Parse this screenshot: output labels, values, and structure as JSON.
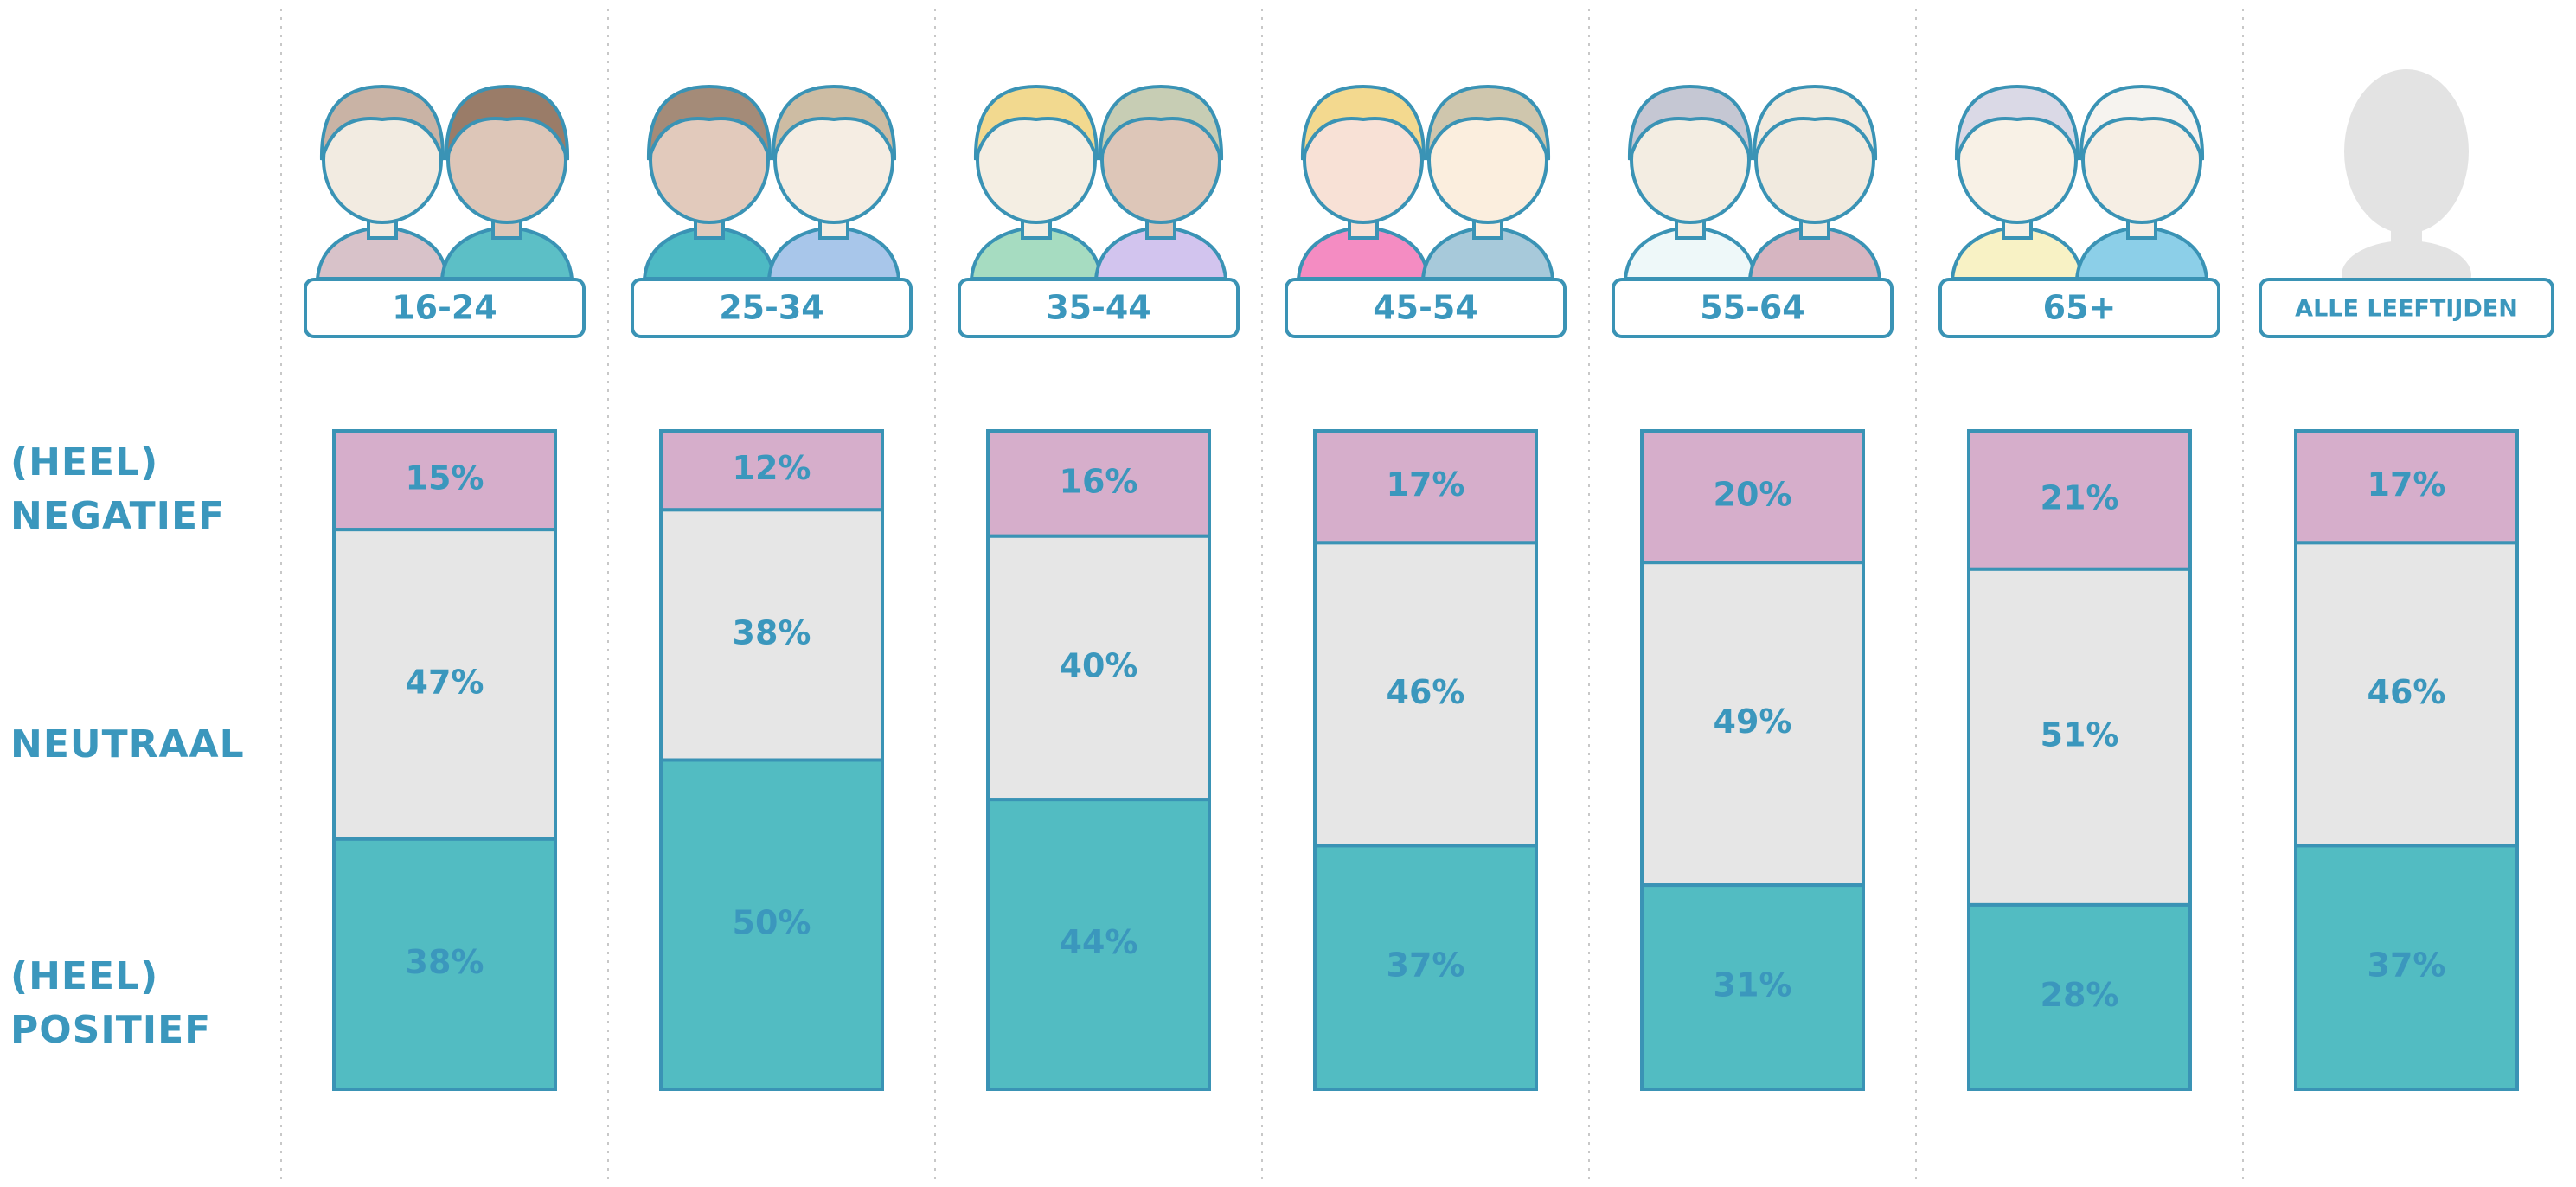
{
  "chart_data": {
    "type": "stacked-bar",
    "categories": [
      "16-24",
      "25-34",
      "35-44",
      "45-54",
      "55-64",
      "65+",
      "ALLE LEEFTIJDEN"
    ],
    "series": [
      {
        "name": "(HEEL) NEGATIEF",
        "color": "#d6aecb",
        "values": [
          15,
          12,
          16,
          17,
          20,
          21,
          17
        ],
        "value_labels": [
          "15%",
          "12%",
          "16%",
          "17%",
          "20%",
          "21%",
          "17%"
        ]
      },
      {
        "name": "NEUTRAAL",
        "color": "#e6e6e6",
        "values": [
          47,
          38,
          40,
          46,
          49,
          51,
          46
        ],
        "value_labels": [
          "47%",
          "38%",
          "40%",
          "46%",
          "49%",
          "51%",
          "46%"
        ]
      },
      {
        "name": "(HEEL) POSITIEF",
        "color": "#52bcc2",
        "values": [
          38,
          50,
          44,
          37,
          31,
          28,
          37
        ],
        "value_labels": [
          "38%",
          "50%",
          "44%",
          "37%",
          "31%",
          "28%",
          "37%"
        ]
      }
    ]
  }
}
